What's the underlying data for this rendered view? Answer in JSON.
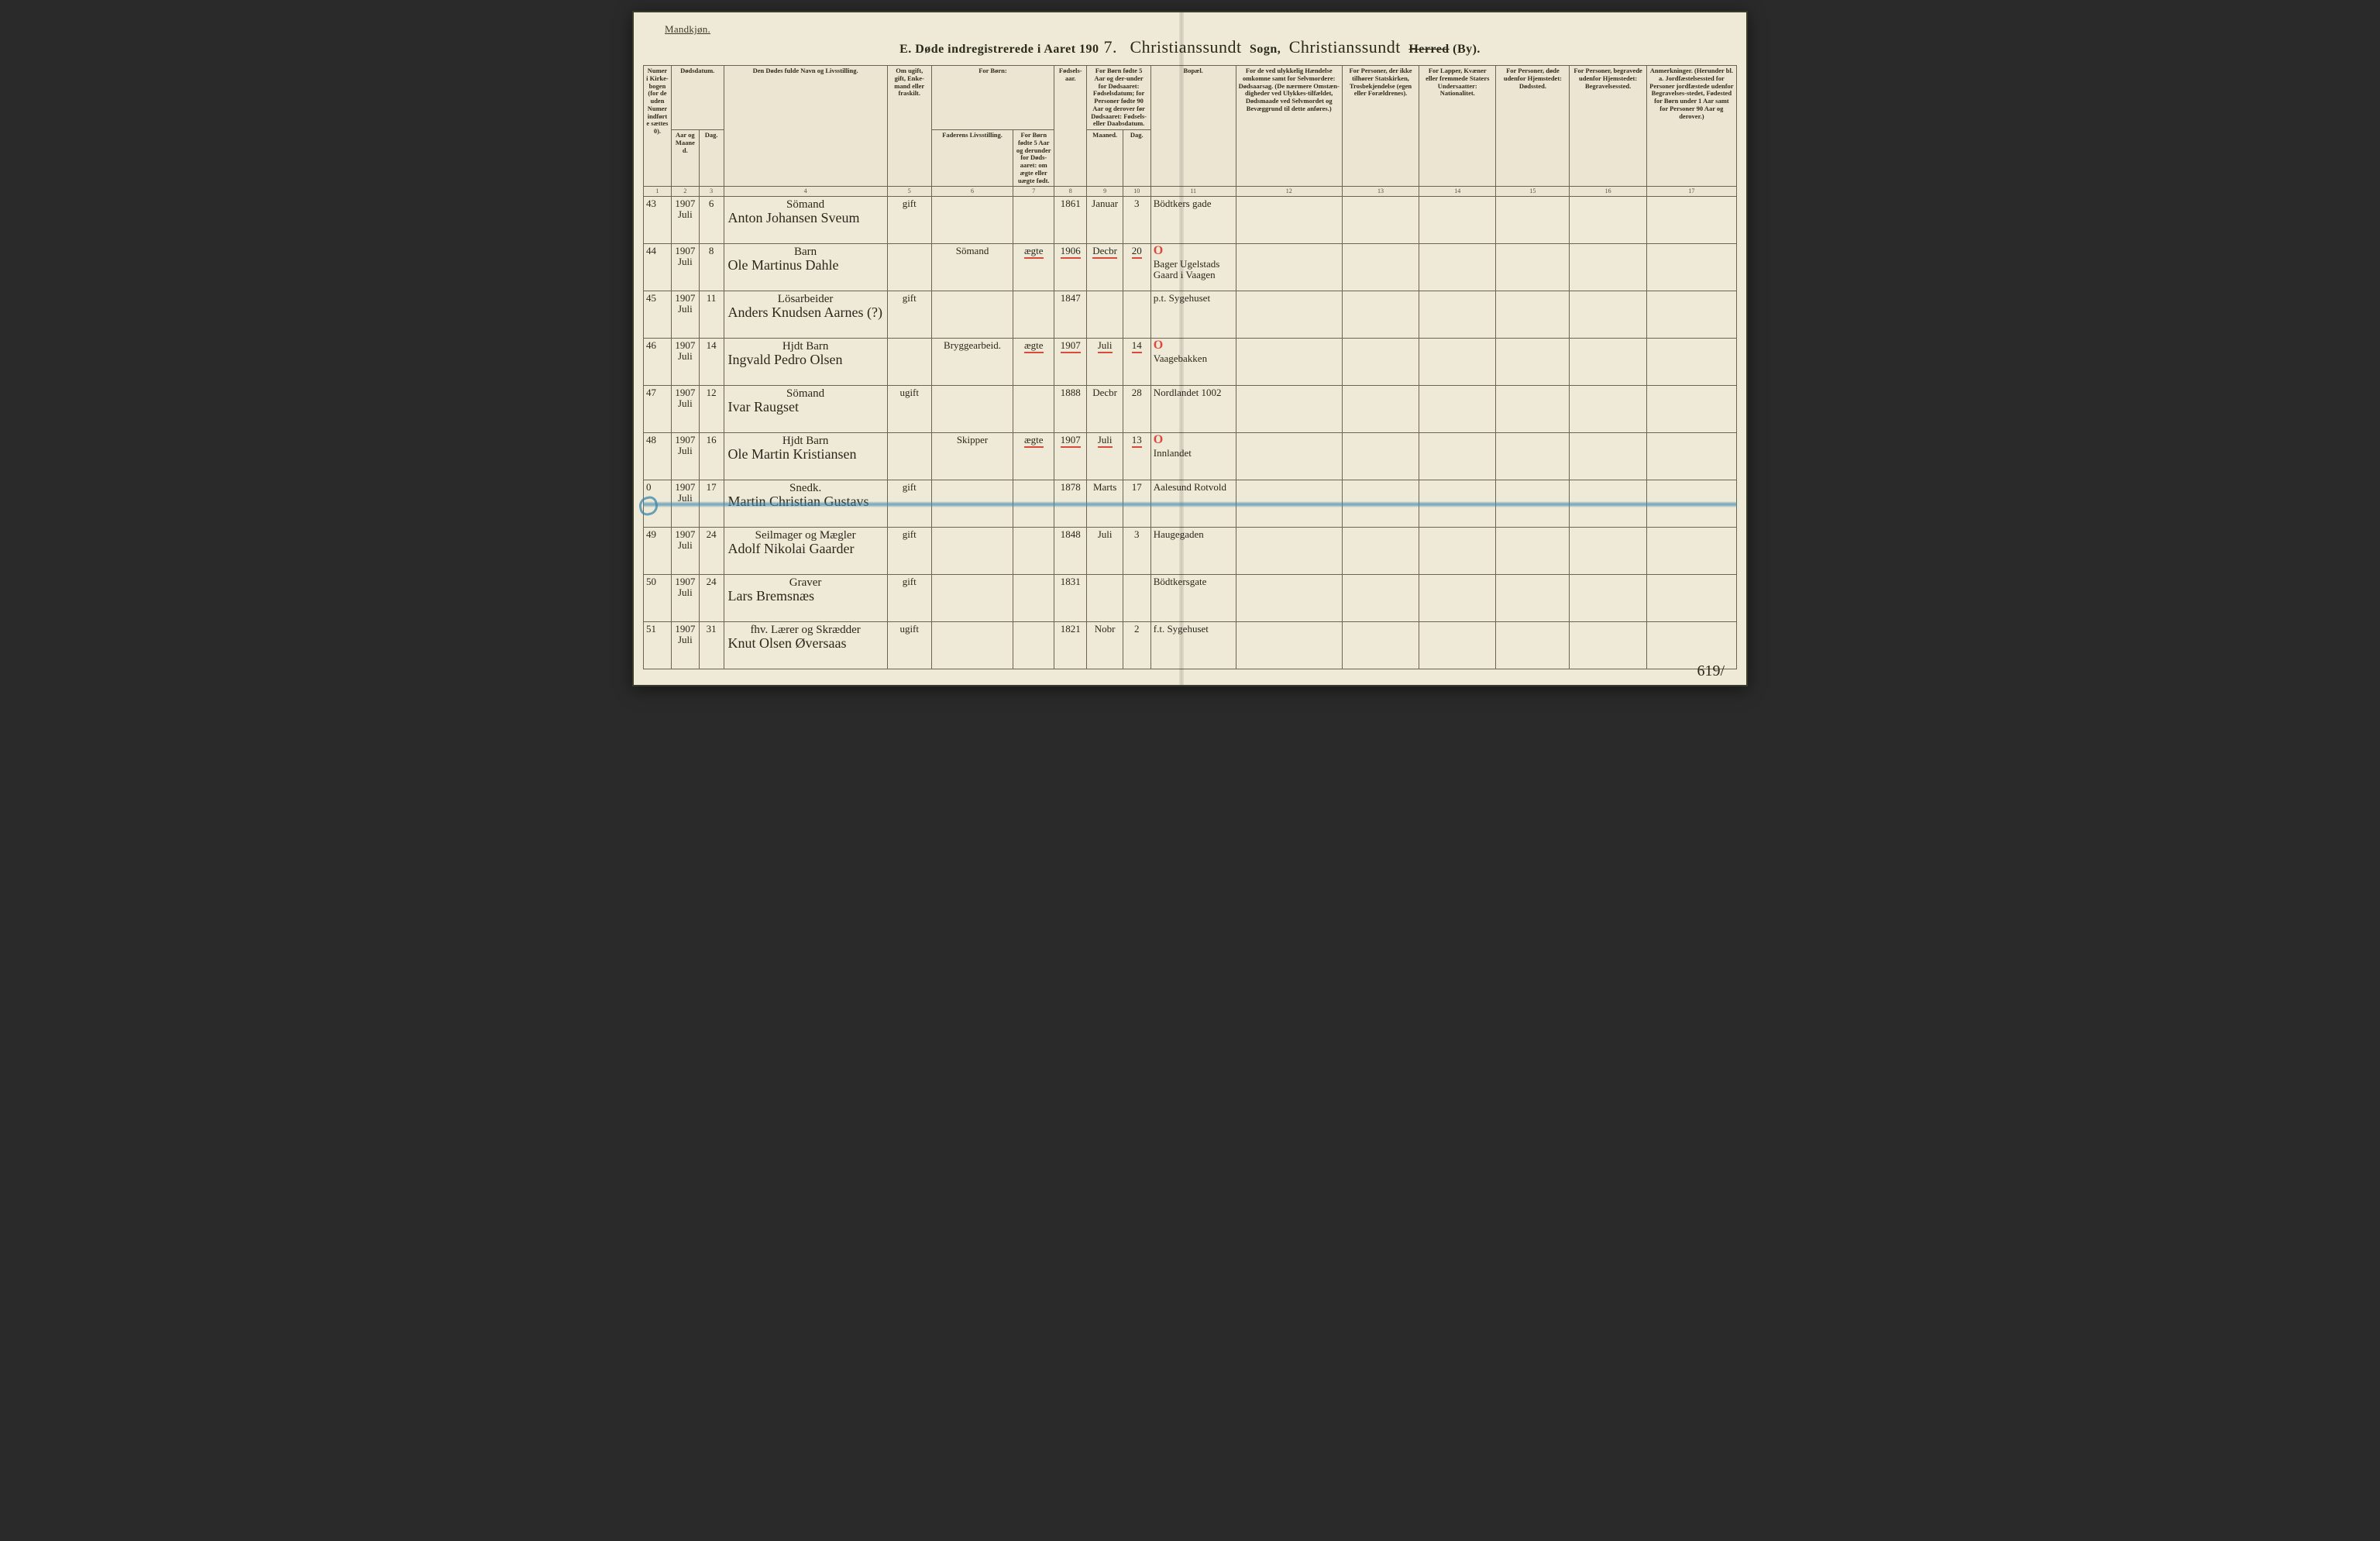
{
  "colors": {
    "page_bg": "#efe9d8",
    "ink": "#2a281a",
    "rule": "#6a6450",
    "red": "#d84a3a",
    "blue_strike": "#3a86aa"
  },
  "header": {
    "top_left": "Mandkjøn.",
    "title_prefix": "E.   Døde indregistrerede i Aaret 190",
    "year_digit": "7.",
    "sogn_script": "Christianssundt",
    "sogn_label": "Sogn,",
    "herred_script": "Christianssundt",
    "herred_printed": "Herred",
    "by_suffix": "(By)."
  },
  "columns": {
    "c1": "Numer i Kirke-bogen (for de uden Numer indførte sættes 0).",
    "c2_3_group": "Dødsdatum.",
    "c2": "Aar og Maaned.",
    "c3": "Dag.",
    "c4": "Den Dødes fulde Navn og Livsstilling.",
    "c5": "Om ugift, gift, Enke-mand eller fraskilt.",
    "c6_7_group": "For Børn:",
    "c6": "Faderens Livsstilling.",
    "c7": "For Børn fødte 5 Aar og derunder for Døds-aaret: om ægte eller uægte født.",
    "c8": "Fødsels-aar.",
    "c9_10_group": "For Børn fødte 5 Aar og der-under for Dødsaaret: Fødselsdatum; for Personer fødte 90 Aar og derover før Dødsaaret: Fødsels- eller Daabsdatum.",
    "c9": "Maaned.",
    "c10": "Dag.",
    "c11": "Bopæl.",
    "c12": "For de ved ulykkelig Hændelse omkomne samt for Selvmordere: Dødsaarsag. (De nærmere Omstæn-digheder ved Ulykkes-tilfældet, Dødsmaade ved Selvmordet og Bevæggrund til dette anføres.)",
    "c13": "For Personer, der ikke tilhører Statskirken, Trosbekjendelse (egen eller Forældrenes).",
    "c14": "For Lapper, Kvæner eller fremmede Staters Undersaatter: Nationalitet.",
    "c15": "For Personer, døde udenfor Hjemstedet: Dødssted.",
    "c16": "For Personer, begravede udenfor Hjemstedet: Begravelsessted.",
    "c17": "Anmerkninger. (Herunder bl. a. Jordfæstelsessted for Personer jordfæstede udenfor Begravelses-stedet, Fødested for Børn under 1 Aar samt for Personer 90 Aar og derover.)"
  },
  "colnums": [
    "1",
    "2",
    "3",
    "4",
    "5",
    "6",
    "7",
    "8",
    "9",
    "10",
    "11",
    "12",
    "13",
    "14",
    "15",
    "16",
    "17"
  ],
  "rows": [
    {
      "n": "43",
      "aarmd": "1907 Juli",
      "dag": "6",
      "occ": "Sömand",
      "name": "Anton Johansen Sveum",
      "civil": "gift",
      "faderliv": "",
      "aegte": "",
      "faar": "1861",
      "fmnd": "Januar",
      "fdag": "3",
      "bopael": "Bödtkers gade",
      "red": false
    },
    {
      "n": "44",
      "aarmd": "1907 Juli",
      "dag": "8",
      "occ": "Barn",
      "name": "Ole Martinus Dahle",
      "civil": "",
      "faderliv": "Sömand",
      "aegte": "ægte",
      "faar": "1906",
      "fmnd": "Decbr",
      "fdag": "20",
      "bopael": "Bager Ugelstads Gaard i Vaagen",
      "red": true
    },
    {
      "n": "45",
      "aarmd": "1907 Juli",
      "dag": "11",
      "occ": "Lösarbeider",
      "name": "Anders Knudsen Aarnes (?)",
      "civil": "gift",
      "faderliv": "",
      "aegte": "",
      "faar": "1847",
      "fmnd": "",
      "fdag": "",
      "bopael": "p.t. Sygehuset",
      "red": false
    },
    {
      "n": "46",
      "aarmd": "1907 Juli",
      "dag": "14",
      "occ": "Hjdt Barn",
      "name": "Ingvald Pedro Olsen",
      "civil": "",
      "faderliv": "Bryggearbeid.",
      "aegte": "ægte",
      "faar": "1907",
      "fmnd": "Juli",
      "fdag": "14",
      "bopael": "Vaagebakken",
      "red": true
    },
    {
      "n": "47",
      "aarmd": "1907 Juli",
      "dag": "12",
      "occ": "Sömand",
      "name": "Ivar Raugset",
      "civil": "ugift",
      "faderliv": "",
      "aegte": "",
      "faar": "1888",
      "fmnd": "Decbr",
      "fdag": "28",
      "bopael": "Nordlandet 1002",
      "red": false
    },
    {
      "n": "48",
      "aarmd": "1907 Juli",
      "dag": "16",
      "occ": "Hjdt Barn",
      "name": "Ole Martin Kristiansen",
      "civil": "",
      "faderliv": "Skipper",
      "aegte": "ægte",
      "faar": "1907",
      "fmnd": "Juli",
      "fdag": "13",
      "bopael": "Innlandet",
      "red": true
    },
    {
      "n": "0",
      "aarmd": "1907 Juli",
      "dag": "17",
      "occ": "Snedk.",
      "name": "Martin Christian Gustavs",
      "civil": "gift",
      "faderliv": "",
      "aegte": "",
      "faar": "1878",
      "fmnd": "Marts",
      "fdag": "17",
      "bopael": "Aalesund  Rotvold",
      "red": false,
      "struck": true
    },
    {
      "n": "49",
      "aarmd": "1907 Juli",
      "dag": "24",
      "occ": "Seilmager og Mægler",
      "name": "Adolf Nikolai Gaarder",
      "civil": "gift",
      "faderliv": "",
      "aegte": "",
      "faar": "1848",
      "fmnd": "Juli",
      "fdag": "3",
      "bopael": "Haugegaden",
      "red": false
    },
    {
      "n": "50",
      "aarmd": "1907 Juli",
      "dag": "24",
      "occ": "Graver",
      "name": "Lars Bremsnæs",
      "civil": "gift",
      "faderliv": "",
      "aegte": "",
      "faar": "1831",
      "fmnd": "",
      "fdag": "",
      "bopael": "Bödtkersgate",
      "red": false
    },
    {
      "n": "51",
      "aarmd": "1907 Juli",
      "dag": "31",
      "occ": "fhv. Lærer og Skrædder",
      "name": "Knut Olsen Øversaas",
      "civil": "ugift",
      "faderliv": "",
      "aegte": "",
      "faar": "1821",
      "fmnd": "Nobr",
      "fdag": "2",
      "bopael": "f.t. Sygehuset",
      "red": false
    }
  ],
  "footer_number": "619/"
}
